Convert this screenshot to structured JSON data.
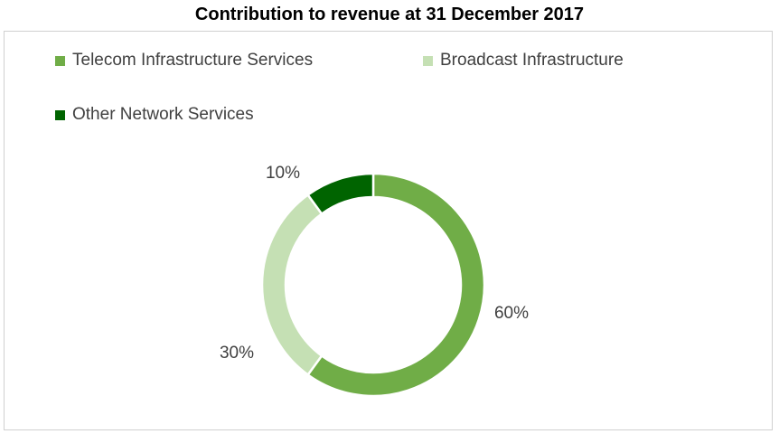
{
  "chart_data": {
    "type": "pie",
    "variant": "doughnut",
    "title": "Contribution to revenue at 31 December 2017",
    "legend_position": "top-left",
    "series": [
      {
        "name": "Telecom Infrastructure Services",
        "value": 60,
        "label": "60%",
        "color": "#70ad47"
      },
      {
        "name": "Broadcast Infrastructure",
        "value": 30,
        "label": "30%",
        "color": "#c5e0b4"
      },
      {
        "name": "Other Network Services",
        "value": 10,
        "label": "10%",
        "color": "#006400"
      }
    ]
  }
}
